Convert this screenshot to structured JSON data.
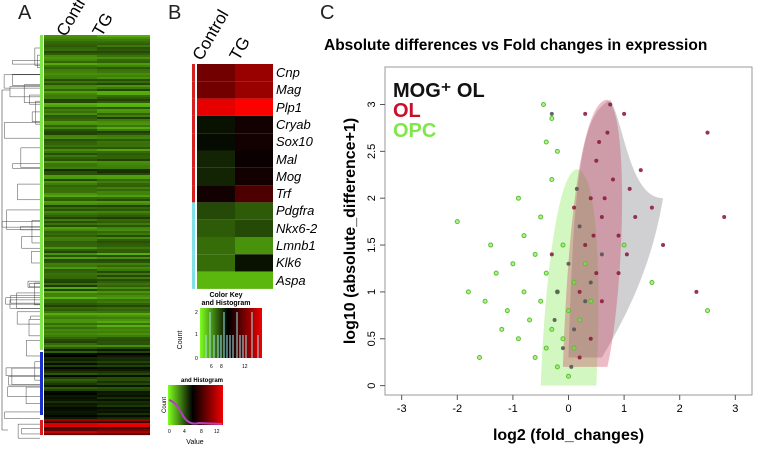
{
  "panels": {
    "a": "A",
    "b": "B",
    "c": "C"
  },
  "panel_a": {
    "columns": [
      "Control",
      "TG"
    ]
  },
  "panel_b": {
    "columns": [
      "Control",
      "TG"
    ],
    "genes": [
      {
        "name": "Cnp",
        "control": 10,
        "tg": 11,
        "group": "OL"
      },
      {
        "name": "Mag",
        "control": 10,
        "tg": 11,
        "group": "OL"
      },
      {
        "name": "Plp1",
        "control": 13,
        "tg": 14,
        "group": "OL"
      },
      {
        "name": "Cryab",
        "control": 6.5,
        "tg": 7.5,
        "group": "OL"
      },
      {
        "name": "Sox10",
        "control": 6.7,
        "tg": 7.5,
        "group": "OL"
      },
      {
        "name": "Mal",
        "control": 6,
        "tg": 7.3,
        "group": "OL"
      },
      {
        "name": "Mog",
        "control": 6,
        "tg": 7.5,
        "group": "OL"
      },
      {
        "name": "Trf",
        "control": 7.5,
        "tg": 9,
        "group": "OL"
      },
      {
        "name": "Pdgfra",
        "control": 5,
        "tg": 4.5,
        "group": "OPC"
      },
      {
        "name": "Nkx6-2",
        "control": 4.5,
        "tg": 5,
        "group": "OPC"
      },
      {
        "name": "Lmnb1",
        "control": 4,
        "tg": 3,
        "group": "OPC"
      },
      {
        "name": "Klk6",
        "control": 4,
        "tg": 6.5,
        "group": "OPC"
      },
      {
        "name": "Aspa",
        "control": 2,
        "tg": 2,
        "group": "OPC"
      }
    ],
    "key1": {
      "title1": "Color Key",
      "title2": "and Histogram",
      "ylabel": "Count",
      "yticks": [
        "0",
        "1",
        "2"
      ],
      "xticks": [
        "6",
        "8",
        "12"
      ]
    },
    "key2": {
      "title": "and Histogram",
      "ylabel": "Count",
      "yticks": [
        "0",
        "100",
        "200"
      ],
      "xticks": [
        "0",
        "4",
        "8",
        "12"
      ],
      "xlabel": "Value"
    }
  },
  "colors": {
    "ol_bar": "#d62020",
    "opc_bar": "#7fe0e8",
    "mog": "#222222",
    "ol": "#c8102e",
    "opc": "#7ee84a",
    "blue": "#1a2ecc"
  },
  "chart_data": {
    "type": "scatter",
    "title": "Absolute differences vs Fold changes in expression",
    "xlabel": "log2 (fold_changes)",
    "ylabel": "log10 (absolute_difference+1)",
    "xlim": [
      -3.3,
      3.3
    ],
    "ylim": [
      -0.1,
      3.4
    ],
    "xticks": [
      "-3",
      "-2",
      "-1",
      "0",
      "1",
      "2",
      "3"
    ],
    "yticks": [
      "0",
      "0.5",
      "1",
      "1.5",
      "2",
      "2.5",
      "3"
    ],
    "legend": [
      "MOG⁺ OL",
      "OL",
      "OPC"
    ],
    "legend_position": "top-left",
    "series": [
      {
        "name": "OPC",
        "points": [
          [
            -2,
            1.75
          ],
          [
            -1.8,
            1
          ],
          [
            -1.5,
            0.9
          ],
          [
            -1.3,
            1.2
          ],
          [
            -1.2,
            0.6
          ],
          [
            -1.1,
            0.8
          ],
          [
            -1,
            1.3
          ],
          [
            -0.9,
            0.5
          ],
          [
            -0.8,
            1
          ],
          [
            -0.8,
            1.6
          ],
          [
            -0.7,
            0.7
          ],
          [
            -0.6,
            1.4
          ],
          [
            -0.6,
            0.3
          ],
          [
            -0.5,
            1.8
          ],
          [
            -0.5,
            0.9
          ],
          [
            -0.4,
            0.4
          ],
          [
            -0.4,
            1.2
          ],
          [
            -0.3,
            2.2
          ],
          [
            -0.3,
            0.6
          ],
          [
            -0.2,
            1
          ],
          [
            -0.2,
            0.2
          ],
          [
            -0.1,
            1.5
          ],
          [
            -0.1,
            0.5
          ],
          [
            0,
            0.8
          ],
          [
            0,
            0.1
          ],
          [
            0.1,
            1.1
          ],
          [
            0.1,
            0.4
          ],
          [
            0.2,
            0.7
          ],
          [
            0.3,
            1.3
          ],
          [
            -0.45,
            3.0
          ],
          [
            -0.4,
            2.6
          ],
          [
            -0.3,
            2.85
          ],
          [
            1,
            1.5
          ],
          [
            1.5,
            1.1
          ],
          [
            2.5,
            0.8
          ],
          [
            -1.6,
            0.3
          ],
          [
            -1.4,
            1.5
          ],
          [
            -0.9,
            2
          ],
          [
            -0.2,
            2.5
          ],
          [
            0.4,
            0.9
          ]
        ]
      },
      {
        "name": "OL",
        "points": [
          [
            0.2,
            1
          ],
          [
            0.3,
            1.5
          ],
          [
            0.4,
            2
          ],
          [
            0.5,
            2.4
          ],
          [
            0.6,
            1.8
          ],
          [
            0.7,
            2.7
          ],
          [
            0.8,
            2.2
          ],
          [
            0.9,
            1.6
          ],
          [
            1,
            2.9
          ],
          [
            1.1,
            2.1
          ],
          [
            0.5,
            1.2
          ],
          [
            0.6,
            0.9
          ],
          [
            0.3,
            2.9
          ],
          [
            0.75,
            3
          ],
          [
            1.2,
            1.8
          ],
          [
            1.3,
            2.3
          ],
          [
            1.5,
            1.9
          ],
          [
            1.7,
            1.5
          ],
          [
            2.5,
            2.7
          ],
          [
            2.8,
            1.8
          ],
          [
            0.4,
            0.5
          ],
          [
            0.2,
            0.3
          ],
          [
            0.1,
            1.9
          ],
          [
            0.9,
            1.2
          ],
          [
            2.3,
            1
          ],
          [
            1.05,
            1.4
          ],
          [
            0.55,
            2.6
          ],
          [
            0.45,
            1.6
          ],
          [
            -0.3,
            1.4
          ],
          [
            0.65,
            2
          ]
        ]
      },
      {
        "name": "MOG⁺ OL",
        "points": [
          [
            -0.2,
            1
          ],
          [
            0,
            1.3
          ],
          [
            0.1,
            0.6
          ],
          [
            0.2,
            1.7
          ],
          [
            0.3,
            0.9
          ],
          [
            -0.1,
            0.4
          ],
          [
            0.4,
            1.1
          ],
          [
            0.6,
            1.4
          ],
          [
            -0.3,
            2.9
          ],
          [
            -0.25,
            0.7
          ],
          [
            0.15,
            2.1
          ],
          [
            0.05,
            0.2
          ]
        ]
      }
    ],
    "density_regions": [
      "OPC",
      "OL",
      "MOG⁺ OL"
    ]
  }
}
